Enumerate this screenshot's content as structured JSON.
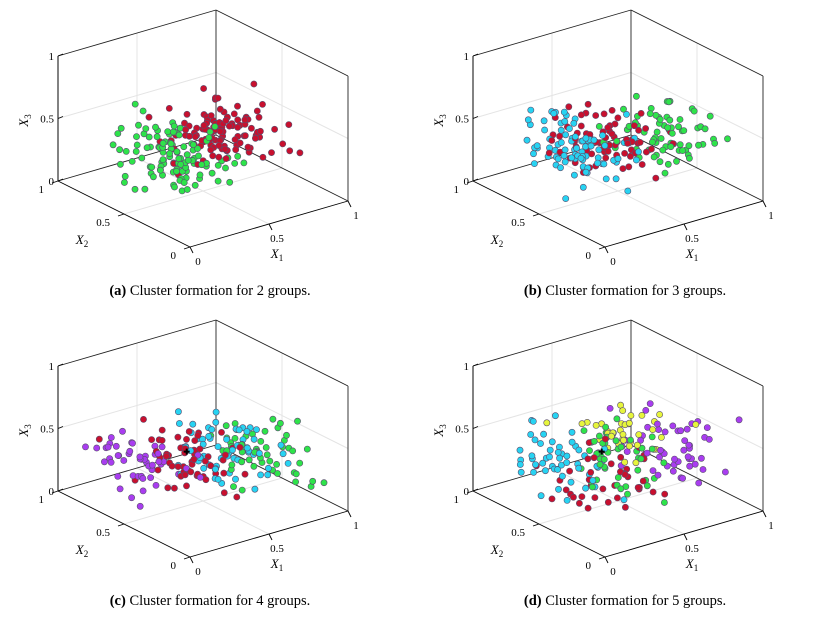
{
  "colors": {
    "green": "#2ee34a",
    "red": "#c8102e",
    "cyan": "#27d3f2",
    "purple": "#a93df0",
    "yellow": "#e6f53c",
    "gridline": "#e4e4e4",
    "edge": "#5b4f6e"
  },
  "chart_data": [
    {
      "type": "scatter",
      "panel_label": "(a)",
      "caption": "Cluster formation for 2 groups.",
      "xlabel": "X",
      "xlabel_sub": "1",
      "ylabel": "X",
      "ylabel_sub": "2",
      "zlabel": "X",
      "zlabel_sub": "3",
      "xlim": [
        0,
        1
      ],
      "ylim": [
        0,
        1
      ],
      "zlim": [
        0,
        1
      ],
      "ticks": [
        "0",
        "0.5",
        "1"
      ],
      "grid": true,
      "clusters": 2,
      "palette": [
        "green",
        "red"
      ],
      "centroid": false
    },
    {
      "type": "scatter",
      "panel_label": "(b)",
      "caption": "Cluster formation for 3 groups.",
      "xlabel": "X",
      "xlabel_sub": "1",
      "ylabel": "X",
      "ylabel_sub": "2",
      "zlabel": "X",
      "zlabel_sub": "3",
      "xlim": [
        0,
        1
      ],
      "ylim": [
        0,
        1
      ],
      "zlim": [
        0,
        1
      ],
      "ticks": [
        "0",
        "0.5",
        "1"
      ],
      "grid": true,
      "clusters": 3,
      "palette": [
        "cyan",
        "red",
        "green"
      ],
      "centroid": false
    },
    {
      "type": "scatter",
      "panel_label": "(c)",
      "caption": "Cluster formation for 4 groups.",
      "xlabel": "X",
      "xlabel_sub": "1",
      "ylabel": "X",
      "ylabel_sub": "2",
      "zlabel": "X",
      "zlabel_sub": "3",
      "xlim": [
        0,
        1
      ],
      "ylim": [
        0,
        1
      ],
      "zlim": [
        0,
        1
      ],
      "ticks": [
        "0",
        "0.5",
        "1"
      ],
      "grid": true,
      "clusters": 4,
      "palette": [
        "purple",
        "red",
        "cyan",
        "green"
      ],
      "centroid": true
    },
    {
      "type": "scatter",
      "panel_label": "(d)",
      "caption": "Cluster formation for 5 groups.",
      "xlabel": "X",
      "xlabel_sub": "1",
      "ylabel": "X",
      "ylabel_sub": "2",
      "zlabel": "X",
      "zlabel_sub": "3",
      "xlim": [
        0,
        1
      ],
      "ylim": [
        0,
        1
      ],
      "zlim": [
        0,
        1
      ],
      "ticks": [
        "0",
        "0.5",
        "1"
      ],
      "grid": true,
      "clusters": 5,
      "palette": [
        "cyan",
        "green",
        "yellow",
        "purple",
        "red"
      ],
      "centroid": true
    }
  ]
}
